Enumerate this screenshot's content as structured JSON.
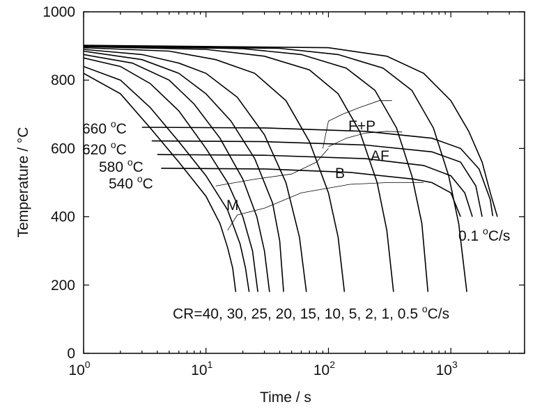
{
  "chart_data": {
    "type": "line",
    "title": "",
    "xlabel": "Time / s",
    "ylabel": "Temperature / °C",
    "xscale": "log",
    "xlim": [
      1,
      4000
    ],
    "ylim": [
      0,
      1000
    ],
    "grid": false,
    "x_ticks": [
      {
        "value": 1,
        "base": "10",
        "exp": "0"
      },
      {
        "value": 10,
        "base": "10",
        "exp": "1"
      },
      {
        "value": 100,
        "base": "10",
        "exp": "2"
      },
      {
        "value": 1000,
        "base": "10",
        "exp": "3"
      }
    ],
    "y_ticks": [
      "0",
      "200",
      "400",
      "600",
      "800",
      "1000"
    ],
    "cooling_rates_label": {
      "prefix": "CR=40, 30, 25, 20, 15, 10, 5, 2, 1, 0.5 ",
      "unit_sup": "o",
      "unit": "C/s"
    },
    "slowest_rate_label": {
      "prefix": "0.1 ",
      "unit_sup": "o",
      "unit": "C/s"
    },
    "phase_labels": [
      "F+P",
      "AF",
      "B",
      "M"
    ],
    "isotherm_labels": [
      {
        "value": "660 ",
        "sup": "o",
        "unit": "C"
      },
      {
        "value": "620 ",
        "sup": "o",
        "unit": "C"
      },
      {
        "value": "580 ",
        "sup": "o",
        "unit": "C"
      },
      {
        "value": "540 ",
        "sup": "o",
        "unit": "C"
      }
    ],
    "series": [
      {
        "values": [
          [
            1.0,
            820
          ],
          [
            2.0,
            760
          ],
          [
            3.5,
            660
          ],
          [
            6.0,
            560
          ],
          [
            10,
            460
          ],
          [
            13,
            380
          ],
          [
            15,
            310
          ],
          [
            16.5,
            250
          ],
          [
            17.5,
            180
          ]
        ]
      },
      {
        "values": [
          [
            1.0,
            840
          ],
          [
            2.0,
            800
          ],
          [
            3.5,
            720
          ],
          [
            6.0,
            620
          ],
          [
            10,
            520
          ],
          [
            15,
            420
          ],
          [
            19,
            320
          ],
          [
            21,
            250
          ],
          [
            22.5,
            180
          ]
        ]
      },
      {
        "values": [
          [
            1.0,
            865
          ],
          [
            2.0,
            840
          ],
          [
            3.5,
            790
          ],
          [
            6.0,
            710
          ],
          [
            10,
            600
          ],
          [
            15,
            500
          ],
          [
            20,
            400
          ],
          [
            24,
            300
          ],
          [
            26.5,
            180
          ]
        ]
      },
      {
        "values": [
          [
            1.0,
            875
          ],
          [
            2.5,
            850
          ],
          [
            5.0,
            800
          ],
          [
            8.0,
            730
          ],
          [
            13,
            630
          ],
          [
            20,
            510
          ],
          [
            26,
            400
          ],
          [
            30,
            300
          ],
          [
            33,
            180
          ]
        ]
      },
      {
        "values": [
          [
            1.0,
            885
          ],
          [
            3.0,
            860
          ],
          [
            6.0,
            820
          ],
          [
            10,
            760
          ],
          [
            16,
            680
          ],
          [
            25,
            570
          ],
          [
            35,
            440
          ],
          [
            40,
            330
          ],
          [
            43,
            180
          ]
        ]
      },
      {
        "values": [
          [
            1.0,
            890
          ],
          [
            3.0,
            875
          ],
          [
            6.0,
            850
          ],
          [
            10,
            820
          ],
          [
            18,
            750
          ],
          [
            30,
            640
          ],
          [
            45,
            500
          ],
          [
            58,
            340
          ],
          [
            66,
            180
          ]
        ]
      },
      {
        "values": [
          [
            1.0,
            895
          ],
          [
            5.0,
            885
          ],
          [
            12,
            860
          ],
          [
            25,
            820
          ],
          [
            45,
            740
          ],
          [
            70,
            620
          ],
          [
            100,
            470
          ],
          [
            120,
            340
          ],
          [
            135,
            180
          ]
        ]
      },
      {
        "values": [
          [
            1.0,
            898
          ],
          [
            10,
            890
          ],
          [
            30,
            870
          ],
          [
            70,
            830
          ],
          [
            120,
            760
          ],
          [
            180,
            650
          ],
          [
            250,
            500
          ],
          [
            300,
            360
          ],
          [
            340,
            180
          ]
        ]
      },
      {
        "values": [
          [
            1.0,
            900
          ],
          [
            20,
            892
          ],
          [
            60,
            875
          ],
          [
            140,
            835
          ],
          [
            240,
            770
          ],
          [
            360,
            660
          ],
          [
            480,
            520
          ],
          [
            580,
            380
          ],
          [
            650,
            180
          ]
        ]
      },
      {
        "values": [
          [
            1.0,
            900
          ],
          [
            40,
            893
          ],
          [
            120,
            875
          ],
          [
            280,
            835
          ],
          [
            480,
            770
          ],
          [
            720,
            660
          ],
          [
            960,
            520
          ],
          [
            1160,
            380
          ],
          [
            1350,
            180
          ]
        ]
      },
      {
        "values": [
          [
            1.0,
            902
          ],
          [
            100,
            895
          ],
          [
            300,
            870
          ],
          [
            600,
            820
          ],
          [
            1000,
            740
          ],
          [
            1400,
            650
          ],
          [
            1800,
            560
          ],
          [
            2100,
            470
          ],
          [
            2400,
            400
          ]
        ]
      }
    ],
    "isotherms": [
      {
        "values": [
          [
            3.0,
            662
          ],
          [
            30,
            660
          ],
          [
            200,
            650
          ],
          [
            700,
            630
          ],
          [
            1200,
            600
          ],
          [
            1700,
            540
          ],
          [
            2100,
            450
          ],
          [
            2200,
            402
          ]
        ]
      },
      {
        "values": [
          [
            3.6,
            622
          ],
          [
            30,
            620
          ],
          [
            200,
            610
          ],
          [
            700,
            590
          ],
          [
            1200,
            560
          ],
          [
            1600,
            490
          ],
          [
            1800,
            400
          ]
        ]
      },
      {
        "values": [
          [
            4.0,
            582
          ],
          [
            30,
            580
          ],
          [
            200,
            570
          ],
          [
            600,
            550
          ],
          [
            1000,
            520
          ],
          [
            1300,
            470
          ],
          [
            1500,
            400
          ]
        ]
      },
      {
        "values": [
          [
            4.3,
            542
          ],
          [
            30,
            540
          ],
          [
            150,
            530
          ],
          [
            500,
            510
          ],
          [
            700,
            500
          ],
          [
            1000,
            470
          ],
          [
            1200,
            400
          ]
        ]
      }
    ],
    "transformation_lines": [
      {
        "values": [
          [
            90,
            600
          ],
          [
            100,
            680
          ],
          [
            130,
            700
          ],
          [
            180,
            720
          ],
          [
            260,
            740
          ],
          [
            330,
            740
          ]
        ]
      },
      {
        "values": [
          [
            100,
            605
          ],
          [
            140,
            630
          ],
          [
            200,
            645
          ],
          [
            300,
            650
          ],
          [
            400,
            648
          ]
        ]
      },
      {
        "values": [
          [
            12,
            490
          ],
          [
            25,
            510
          ],
          [
            50,
            525
          ],
          [
            80,
            560
          ],
          [
            100,
            600
          ]
        ]
      },
      {
        "values": [
          [
            15,
            360
          ],
          [
            18,
            405
          ],
          [
            30,
            425
          ],
          [
            60,
            470
          ],
          [
            150,
            495
          ],
          [
            300,
            500
          ],
          [
            600,
            500
          ]
        ]
      }
    ]
  }
}
